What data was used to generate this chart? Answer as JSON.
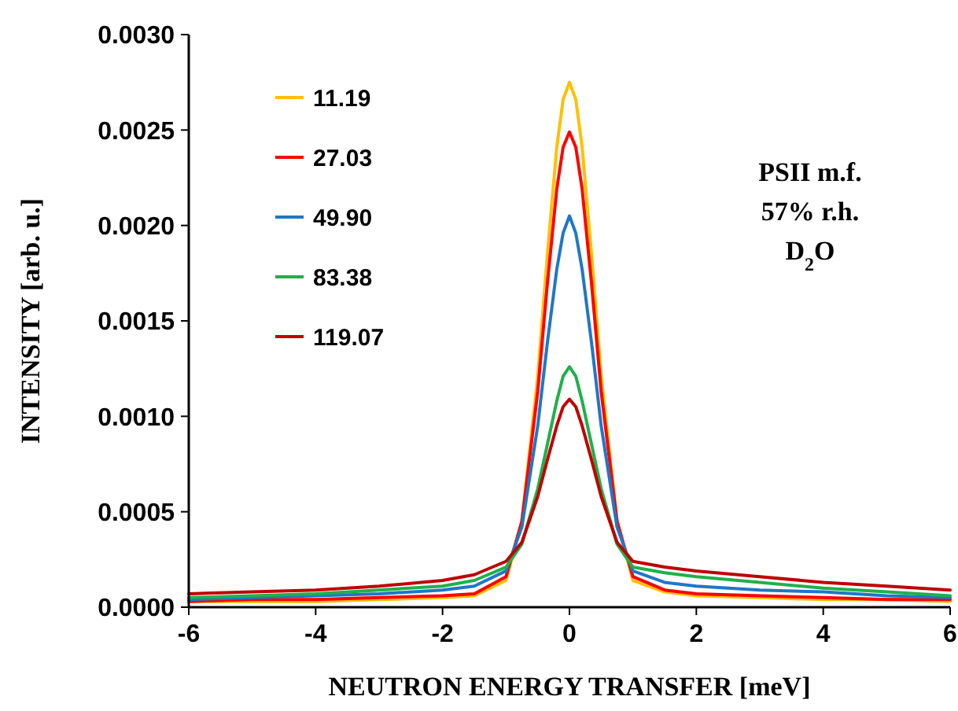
{
  "chart_data": {
    "type": "line",
    "xlabel": "NEUTRON ENERGY TRANSFER [meV]",
    "ylabel": "INTENSITY [arb. u.]",
    "x": [
      -6,
      -5,
      -4,
      -3,
      -2,
      -1.5,
      -1,
      -0.75,
      -0.5,
      -0.35,
      -0.2,
      -0.1,
      0,
      0.1,
      0.2,
      0.35,
      0.5,
      0.75,
      1,
      1.5,
      2,
      3,
      4,
      5,
      6
    ],
    "series": [
      {
        "name": "11.19",
        "color": "#ffc000",
        "values": [
          3e-05,
          3e-05,
          3e-05,
          4e-05,
          5e-05,
          6e-05,
          0.00014,
          0.00045,
          0.00121,
          0.00184,
          0.00241,
          0.00266,
          0.00275,
          0.00266,
          0.00241,
          0.00184,
          0.00121,
          0.00045,
          0.00014,
          8e-05,
          6e-05,
          5e-05,
          4e-05,
          4e-05,
          3e-05
        ]
      },
      {
        "name": "27.03",
        "color": "#ff0000",
        "values": [
          3e-05,
          4e-05,
          4e-05,
          5e-05,
          6e-05,
          7e-05,
          0.00016,
          0.00045,
          0.00113,
          0.00169,
          0.00219,
          0.00241,
          0.00249,
          0.00241,
          0.00219,
          0.00169,
          0.00113,
          0.00045,
          0.00016,
          9e-05,
          7e-05,
          6e-05,
          5e-05,
          4e-05,
          4e-05
        ]
      },
      {
        "name": "49.90",
        "color": "#1f77c8",
        "values": [
          4e-05,
          5e-05,
          6e-05,
          7e-05,
          9e-05,
          0.00011,
          0.00019,
          0.00042,
          0.00095,
          0.00138,
          0.00177,
          0.00196,
          0.00205,
          0.00196,
          0.00177,
          0.00138,
          0.00095,
          0.00042,
          0.00019,
          0.00013,
          0.00011,
          9e-05,
          8e-05,
          6e-05,
          5e-05
        ]
      },
      {
        "name": "83.38",
        "color": "#1fb04a",
        "values": [
          5e-05,
          6e-05,
          7e-05,
          9e-05,
          0.00011,
          0.00014,
          0.00021,
          0.00033,
          0.00062,
          0.00085,
          0.00108,
          0.00121,
          0.00126,
          0.00121,
          0.00108,
          0.00085,
          0.00062,
          0.00033,
          0.00021,
          0.00018,
          0.00016,
          0.00013,
          0.0001,
          8e-05,
          6e-05
        ]
      },
      {
        "name": "119.07",
        "color": "#c00000",
        "values": [
          7e-05,
          8e-05,
          9e-05,
          0.00011,
          0.00014,
          0.00017,
          0.00024,
          0.00034,
          0.00058,
          0.00077,
          0.00095,
          0.00105,
          0.00109,
          0.00105,
          0.00095,
          0.00077,
          0.00058,
          0.00034,
          0.00024,
          0.00021,
          0.00019,
          0.00016,
          0.00013,
          0.00011,
          9e-05
        ]
      }
    ],
    "xlim": [
      -6,
      6
    ],
    "xticks": [
      -6,
      -4,
      -2,
      0,
      2,
      4,
      6
    ],
    "ylim": [
      0,
      0.003
    ],
    "yticks": [
      {
        "value": 0,
        "label": "0.0000"
      },
      {
        "value": 0.0005,
        "label": "0.0005"
      },
      {
        "value": 0.001,
        "label": "0.0010"
      },
      {
        "value": 0.0015,
        "label": "0.0015"
      },
      {
        "value": 0.002,
        "label": "0.0020"
      },
      {
        "value": 0.0025,
        "label": "0.0025"
      },
      {
        "value": 0.003,
        "label": "0.0030"
      }
    ],
    "annotations": [
      "PSII m.f.",
      "57% r.h.",
      "D$_{2}$O"
    ],
    "legend": "top left",
    "grid": false,
    "line_style": "solid"
  }
}
